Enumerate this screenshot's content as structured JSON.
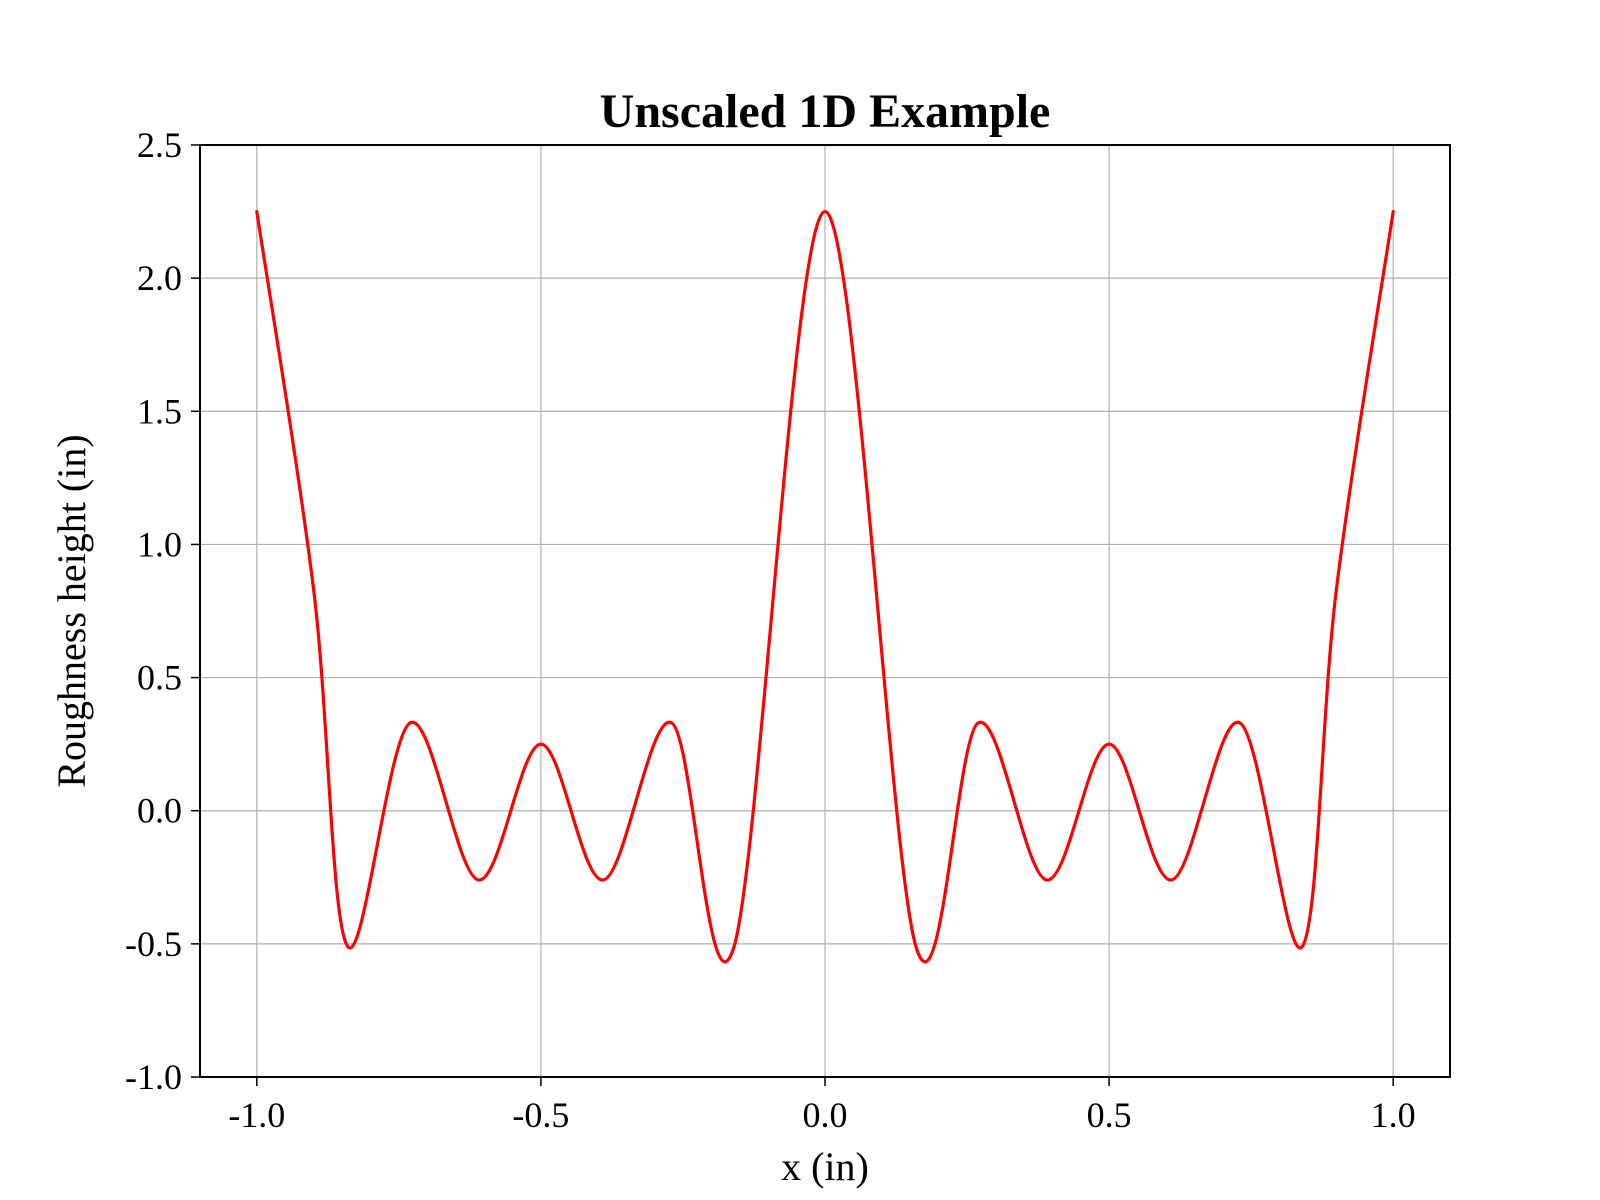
{
  "chart_data": {
    "type": "line",
    "title": "Unscaled 1D Example",
    "xlabel": "x (in)",
    "ylabel": "Roughness height (in)",
    "xlim": [
      -1.1,
      1.1
    ],
    "ylim": [
      -1.0,
      2.5
    ],
    "xticks": [
      -1.0,
      -0.5,
      0.0,
      0.5,
      1.0
    ],
    "xtick_labels": [
      "-1.0",
      "-0.5",
      "0.0",
      "0.5",
      "1.0"
    ],
    "yticks": [
      -1.0,
      -0.5,
      0.0,
      0.5,
      1.0,
      1.5,
      2.0,
      2.5
    ],
    "ytick_labels": [
      "-1.0",
      "-0.5",
      "0.0",
      "0.5",
      "1.0",
      "1.5",
      "2.0",
      "2.5"
    ],
    "grid": true,
    "series": [
      {
        "color": "#ff0000",
        "x": [
          -1.0,
          -0.9,
          -0.84,
          -0.73,
          -0.61,
          -0.5,
          -0.39,
          -0.27,
          -0.16,
          0.0,
          0.16,
          0.27,
          0.39,
          0.5,
          0.61,
          0.73,
          0.84,
          0.9,
          1.0
        ],
        "y": [
          2.25,
          0.83,
          -0.51,
          0.33,
          -0.26,
          0.25,
          -0.26,
          0.33,
          -0.51,
          2.25,
          -0.51,
          0.33,
          -0.26,
          0.25,
          -0.26,
          0.33,
          -0.51,
          0.83,
          2.25
        ]
      }
    ]
  }
}
